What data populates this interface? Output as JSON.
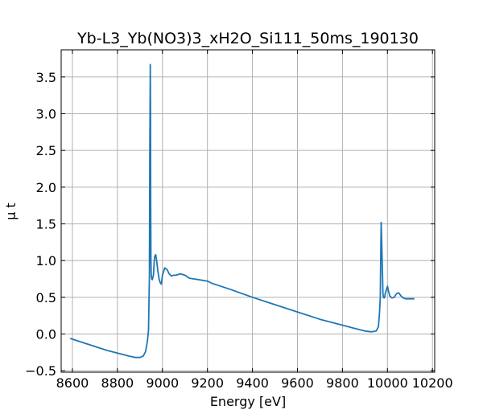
{
  "chart_data": {
    "type": "line",
    "title": "Yb-L3_Yb(NO3)3_xH2O_Si111_50ms_190130",
    "xlabel": "Energy [eV]",
    "ylabel": "μ t",
    "xlim": [
      8550,
      10210
    ],
    "ylim": [
      -0.52,
      3.87
    ],
    "xticks": [
      8600,
      8800,
      9000,
      9200,
      9400,
      9600,
      9800,
      10000,
      10200
    ],
    "yticks": [
      -0.5,
      0.0,
      0.5,
      1.0,
      1.5,
      2.0,
      2.5,
      3.0,
      3.5
    ],
    "xtick_labels": [
      "8600",
      "8800",
      "9000",
      "9200",
      "9400",
      "9600",
      "9800",
      "10000",
      "10200"
    ],
    "ytick_labels": [
      "−0.5",
      "0.0",
      "0.5",
      "1.0",
      "1.5",
      "2.0",
      "2.5",
      "3.0",
      "3.5"
    ],
    "grid": true,
    "series": [
      {
        "color": "#1f77b4",
        "x": [
          8590,
          8650,
          8700,
          8750,
          8800,
          8850,
          8880,
          8900,
          8915,
          8925,
          8933,
          8938,
          8942,
          8944,
          8946,
          8947,
          8948,
          8949,
          8950,
          8952,
          8955,
          8960,
          8965,
          8970,
          8975,
          8980,
          8985,
          8990,
          8995,
          9000,
          9010,
          9020,
          9030,
          9040,
          9050,
          9060,
          9080,
          9100,
          9120,
          9140,
          9160,
          9180,
          9200,
          9220,
          9250,
          9300,
          9400,
          9500,
          9600,
          9700,
          9800,
          9850,
          9900,
          9930,
          9950,
          9960,
          9965,
          9968,
          9970,
          9972,
          9975,
          9978,
          9980,
          9982,
          9985,
          9988,
          9990,
          9995,
          10000,
          10005,
          10010,
          10020,
          10030,
          10040,
          10050,
          10060,
          10070,
          10080,
          10090,
          10100,
          10110,
          10120
        ],
        "y": [
          -0.06,
          -0.12,
          -0.17,
          -0.22,
          -0.26,
          -0.3,
          -0.32,
          -0.32,
          -0.3,
          -0.24,
          -0.1,
          0.05,
          0.8,
          2.5,
          3.67,
          3.0,
          1.8,
          1.0,
          0.82,
          0.75,
          0.74,
          0.8,
          1.05,
          1.08,
          0.98,
          0.85,
          0.75,
          0.7,
          0.68,
          0.8,
          0.9,
          0.88,
          0.82,
          0.79,
          0.8,
          0.8,
          0.82,
          0.8,
          0.76,
          0.75,
          0.74,
          0.73,
          0.72,
          0.69,
          0.66,
          0.61,
          0.5,
          0.4,
          0.3,
          0.2,
          0.12,
          0.08,
          0.04,
          0.03,
          0.04,
          0.1,
          0.3,
          0.5,
          1.0,
          1.52,
          1.2,
          0.8,
          0.55,
          0.5,
          0.49,
          0.5,
          0.55,
          0.6,
          0.65,
          0.58,
          0.52,
          0.49,
          0.5,
          0.55,
          0.56,
          0.52,
          0.49,
          0.48,
          0.48,
          0.48,
          0.48,
          0.48
        ]
      }
    ]
  }
}
